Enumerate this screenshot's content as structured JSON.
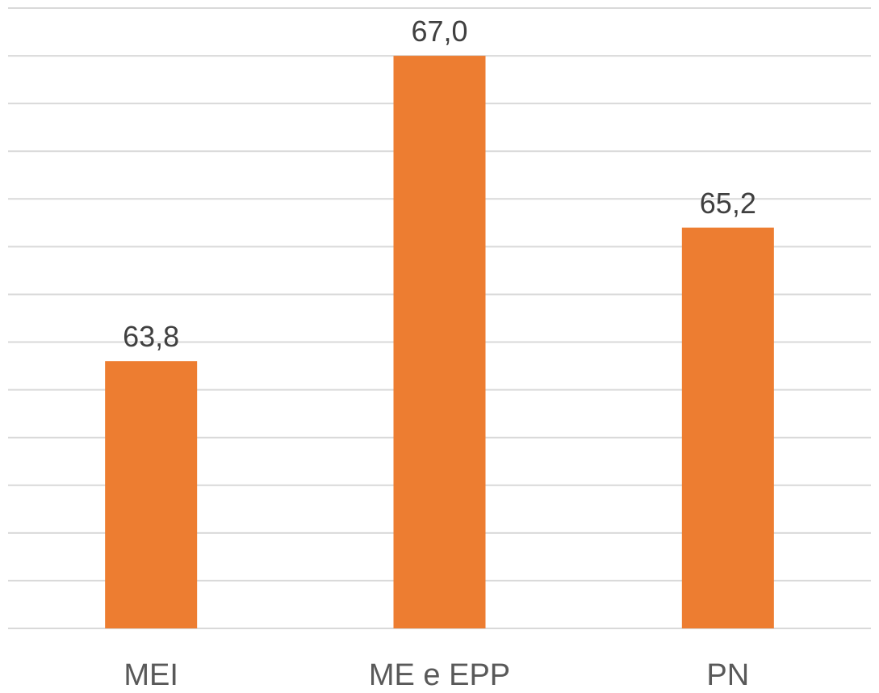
{
  "chart_data": {
    "type": "bar",
    "categories": [
      "MEI",
      "ME e EPP",
      "PN"
    ],
    "values": [
      63.8,
      67.0,
      65.2
    ],
    "value_labels": [
      "63,8",
      "67,0",
      "65,2"
    ],
    "ylim": [
      61.0,
      67.0
    ],
    "grid": true,
    "legend": "none",
    "bar_color": "#ED7D31",
    "grid_color": "#D9D9D9"
  }
}
